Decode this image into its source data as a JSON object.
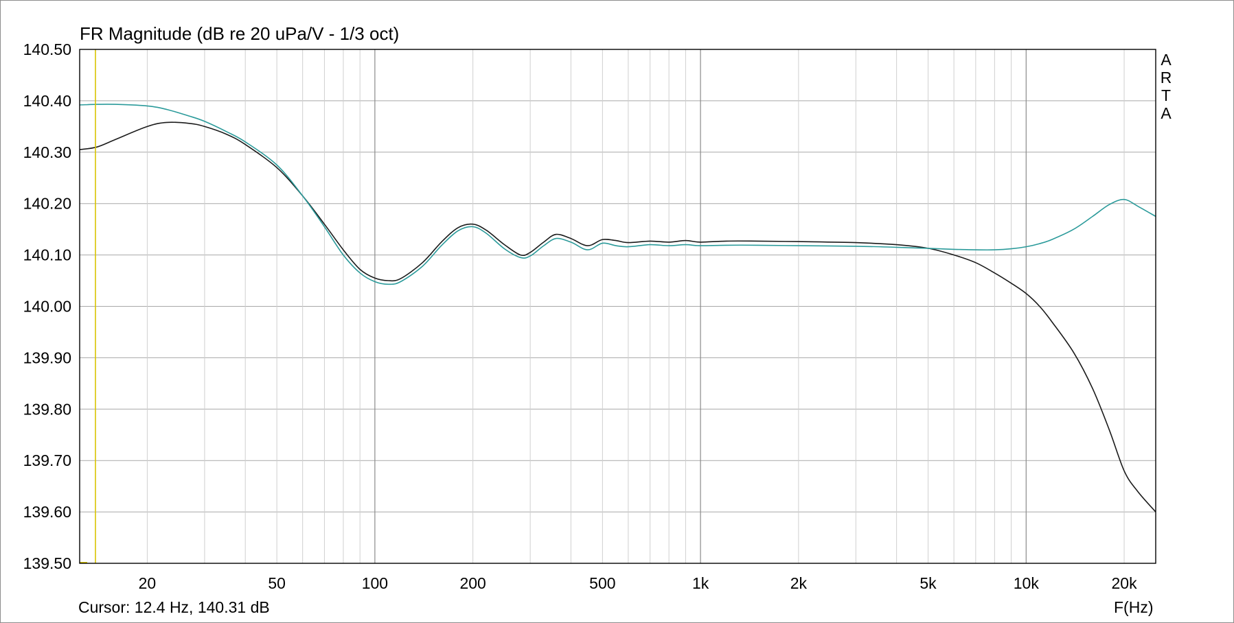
{
  "chart_data": {
    "type": "line",
    "title": "FR Magnitude (dB re 20 uPa/V - 1/3 oct)",
    "xlabel": "F(Hz)",
    "ylabel": "",
    "x_scale": "log",
    "xlim": [
      12.4,
      25000
    ],
    "ylim": [
      139.5,
      140.5
    ],
    "grid": true,
    "y_ticks": [
      139.5,
      139.6,
      139.7,
      139.8,
      139.9,
      140.0,
      140.1,
      140.2,
      140.3,
      140.4,
      140.5
    ],
    "y_tick_labels": [
      "139.50",
      "139.60",
      "139.70",
      "139.80",
      "139.90",
      "140.00",
      "140.10",
      "140.20",
      "140.30",
      "140.40",
      "140.50"
    ],
    "x_tick_values": [
      20,
      50,
      100,
      200,
      500,
      1000,
      2000,
      5000,
      10000,
      20000
    ],
    "x_tick_labels": [
      "20",
      "50",
      "100",
      "200",
      "500",
      "1k",
      "2k",
      "5k",
      "10k",
      "20k"
    ],
    "cursor_x": 12.4,
    "series": [
      {
        "color": "#1a1a1a",
        "x": [
          12.4,
          14,
          16,
          20,
          23,
          27,
          30,
          35,
          40,
          50,
          60,
          70,
          80,
          90,
          100,
          110,
          120,
          140,
          160,
          180,
          200,
          220,
          250,
          280,
          300,
          330,
          360,
          400,
          450,
          500,
          550,
          600,
          700,
          800,
          900,
          1000,
          1200,
          1500,
          2000,
          3000,
          4000,
          5000,
          6000,
          7000,
          8000,
          9000,
          10000,
          11000,
          12000,
          14000,
          16000,
          18000,
          20000,
          22000,
          25000
        ],
        "y": [
          140.305,
          140.31,
          140.325,
          140.35,
          140.358,
          140.356,
          140.35,
          140.335,
          140.315,
          140.27,
          140.215,
          140.16,
          140.11,
          140.072,
          140.055,
          140.05,
          140.054,
          140.085,
          140.125,
          140.153,
          140.16,
          140.148,
          140.12,
          140.1,
          140.105,
          140.125,
          140.14,
          140.132,
          140.118,
          140.13,
          140.128,
          140.124,
          140.127,
          140.125,
          140.128,
          140.125,
          140.127,
          140.127,
          140.126,
          140.124,
          140.12,
          140.113,
          140.1,
          140.085,
          140.065,
          140.045,
          140.025,
          140.0,
          139.97,
          139.91,
          139.84,
          139.76,
          139.68,
          139.64,
          139.6
        ]
      },
      {
        "color": "#2a9a9a",
        "x": [
          12.4,
          14,
          16,
          20,
          23,
          27,
          30,
          35,
          40,
          50,
          60,
          70,
          80,
          90,
          100,
          110,
          120,
          140,
          160,
          180,
          200,
          220,
          250,
          280,
          300,
          330,
          360,
          400,
          450,
          500,
          550,
          600,
          700,
          800,
          900,
          1000,
          1200,
          1500,
          2000,
          3000,
          4000,
          5000,
          6000,
          7000,
          8000,
          9000,
          10000,
          11000,
          12000,
          14000,
          16000,
          18000,
          20000,
          22000,
          25000
        ],
        "y": [
          140.392,
          140.393,
          140.393,
          140.39,
          140.383,
          140.37,
          140.36,
          140.34,
          140.32,
          140.275,
          140.215,
          140.155,
          140.1,
          140.065,
          140.048,
          140.043,
          140.048,
          140.078,
          140.118,
          140.147,
          140.155,
          140.142,
          140.112,
          140.095,
          140.098,
          140.118,
          140.132,
          140.125,
          140.11,
          140.123,
          140.118,
          140.116,
          140.12,
          140.118,
          140.12,
          140.118,
          140.119,
          140.119,
          140.118,
          140.117,
          140.115,
          140.113,
          140.111,
          140.11,
          140.11,
          140.112,
          140.116,
          140.122,
          140.13,
          140.15,
          140.175,
          140.198,
          140.208,
          140.195,
          140.175
        ]
      }
    ]
  },
  "cursor_readout": "Cursor: 12.4 Hz, 140.31 dB",
  "watermark": [
    "A",
    "R",
    "T",
    "A"
  ]
}
